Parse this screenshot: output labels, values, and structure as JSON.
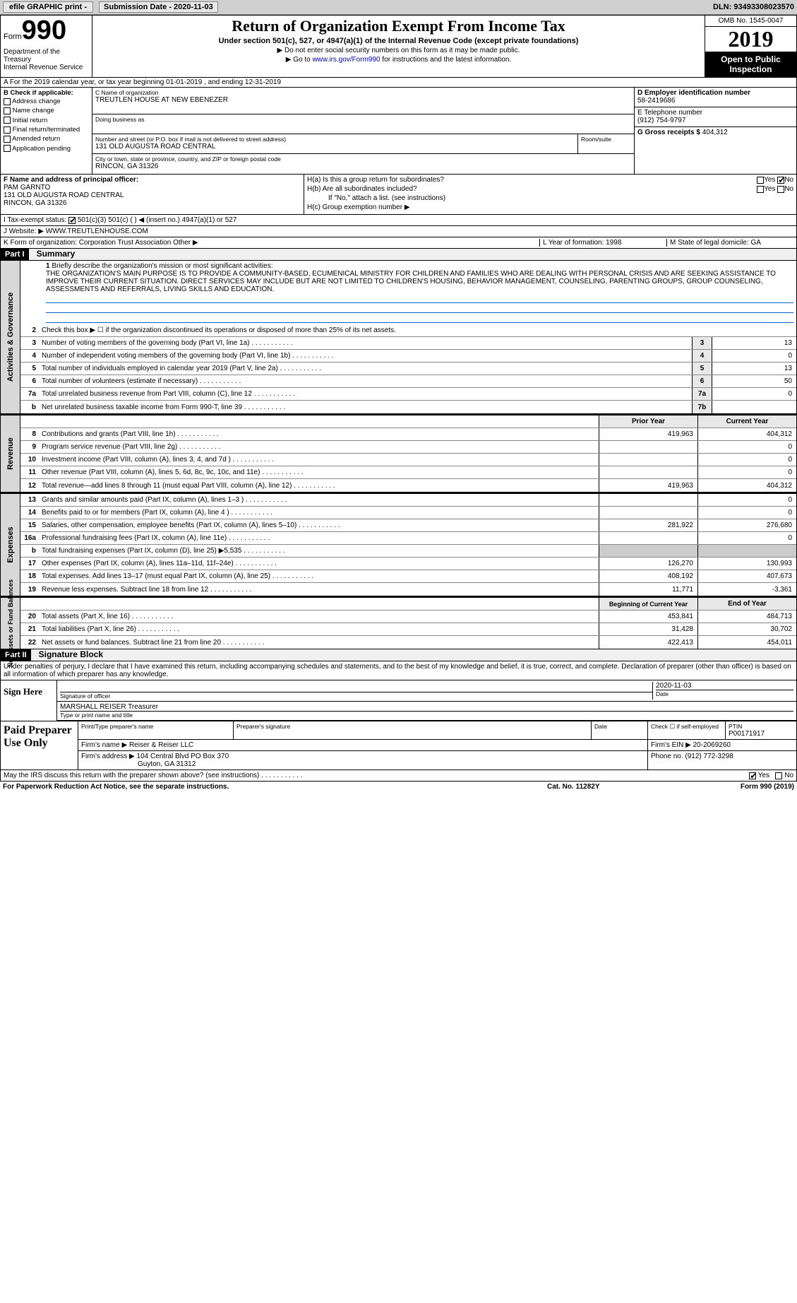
{
  "topbar": {
    "efile": "efile GRAPHIC print -",
    "sub_date_label": "Submission Date - 2020-11-03",
    "dln": "DLN: 93493308023570"
  },
  "header": {
    "form_label": "Form",
    "form_no": "990",
    "dept": "Department of the Treasury\nInternal Revenue Service",
    "title": "Return of Organization Exempt From Income Tax",
    "subtitle": "Under section 501(c), 527, or 4947(a)(1) of the Internal Revenue Code (except private foundations)",
    "note1": "▶ Do not enter social security numbers on this form as it may be made public.",
    "note2_pre": "▶ Go to ",
    "note2_link": "www.irs.gov/Form990",
    "note2_post": " for instructions and the latest information.",
    "omb": "OMB No. 1545-0047",
    "year": "2019",
    "otp": "Open to Public Inspection"
  },
  "row_a": "A For the 2019 calendar year, or tax year beginning 01-01-2019    , and ending 12-31-2019",
  "col_b": {
    "hdr": "B Check if applicable:",
    "items": [
      "Address change",
      "Name change",
      "Initial return",
      "Final return/terminated",
      "Amended return",
      "Application pending"
    ]
  },
  "col_c": {
    "name_lbl": "C Name of organization",
    "name": "TREUTLEN HOUSE AT NEW EBENEZER",
    "dba_lbl": "Doing business as",
    "dba": "",
    "addr_lbl": "Number and street (or P.O. box if mail is not delivered to street address)",
    "addr": "131 OLD AUGUSTA ROAD CENTRAL",
    "room_lbl": "Room/suite",
    "city_lbl": "City or town, state or province, country, and ZIP or foreign postal code",
    "city": "RINCON, GA  31326"
  },
  "col_deg": {
    "d_lbl": "D Employer identification number",
    "d_val": "58-2419686",
    "e_lbl": "E Telephone number",
    "e_val": "(912) 754-9797",
    "g_lbl": "G Gross receipts $",
    "g_val": "404,312"
  },
  "col_f": {
    "lbl": "F Name and address of principal officer:",
    "name": "PAM GARNTO",
    "addr1": "131 OLD AUGUSTA ROAD CENTRAL",
    "addr2": "RINCON, GA  31326"
  },
  "col_h": {
    "ha": "H(a)  Is this a group return for subordinates?",
    "hb": "H(b)  Are all subordinates included?",
    "hb_note": "If \"No,\" attach a list. (see instructions)",
    "hc": "H(c)  Group exemption number ▶"
  },
  "row_i": "I   Tax-exempt status:",
  "row_i_opts": "501(c)(3)      501(c) (  ) ◀ (insert no.)      4947(a)(1) or      527",
  "row_j_lbl": "J   Website: ▶",
  "row_j_val": "WWW.TREUTLENHOUSE.COM",
  "row_k": "K Form of organization:      Corporation      Trust      Association      Other ▶",
  "row_l_lbl": "L Year of formation:",
  "row_l_val": "1998",
  "row_m_lbl": "M State of legal domicile:",
  "row_m_val": "GA",
  "part1": {
    "label": "Part I",
    "title": "Summary"
  },
  "mission": {
    "num": "1",
    "lbl": "Briefly describe the organization's mission or most significant activities:",
    "text": "THE ORGANIZATION'S MAIN PURPOSE IS TO PROVIDE A COMMUNITY-BASED, ECUMENICAL MINISTRY FOR CHILDREN AND FAMILIES WHO ARE DEALING WITH PERSONAL CRISIS AND ARE SEEKING ASSISTANCE TO IMPROVE THEIR CURRENT SITUATION. DIRECT SERVICES MAY INCLUDE BUT ARE NOT LIMITED TO CHILDREN'S HOUSING, BEHAVIOR MANAGEMENT, COUNSELING, PARENTING GROUPS, GROUP COUNSELING, ASSESSMENTS AND REFERRALS, LIVING SKILLS AND EDUCATION."
  },
  "gov_rows": [
    {
      "n": "2",
      "d": "Check this box ▶ ☐ if the organization discontinued its operations or disposed of more than 25% of its net assets."
    },
    {
      "n": "3",
      "d": "Number of voting members of the governing body (Part VI, line 1a)",
      "box": "3",
      "v": "13"
    },
    {
      "n": "4",
      "d": "Number of independent voting members of the governing body (Part VI, line 1b)",
      "box": "4",
      "v": "0"
    },
    {
      "n": "5",
      "d": "Total number of individuals employed in calendar year 2019 (Part V, line 2a)",
      "box": "5",
      "v": "13"
    },
    {
      "n": "6",
      "d": "Total number of volunteers (estimate if necessary)",
      "box": "6",
      "v": "50"
    },
    {
      "n": "7a",
      "d": "Total unrelated business revenue from Part VIII, column (C), line 12",
      "box": "7a",
      "v": "0"
    },
    {
      "n": "b",
      "d": "Net unrelated business taxable income from Form 990-T, line 39",
      "box": "7b",
      "v": ""
    }
  ],
  "rev_hdr": {
    "prior": "Prior Year",
    "curr": "Current Year"
  },
  "rev_rows": [
    {
      "n": "8",
      "d": "Contributions and grants (Part VIII, line 1h)",
      "p": "419,963",
      "c": "404,312"
    },
    {
      "n": "9",
      "d": "Program service revenue (Part VIII, line 2g)",
      "p": "",
      "c": "0"
    },
    {
      "n": "10",
      "d": "Investment income (Part VIII, column (A), lines 3, 4, and 7d )",
      "p": "",
      "c": "0"
    },
    {
      "n": "11",
      "d": "Other revenue (Part VIII, column (A), lines 5, 6d, 8c, 9c, 10c, and 11e)",
      "p": "",
      "c": "0"
    },
    {
      "n": "12",
      "d": "Total revenue—add lines 8 through 11 (must equal Part VIII, column (A), line 12)",
      "p": "419,963",
      "c": "404,312"
    }
  ],
  "exp_rows": [
    {
      "n": "13",
      "d": "Grants and similar amounts paid (Part IX, column (A), lines 1–3 )",
      "p": "",
      "c": "0"
    },
    {
      "n": "14",
      "d": "Benefits paid to or for members (Part IX, column (A), line 4 )",
      "p": "",
      "c": "0"
    },
    {
      "n": "15",
      "d": "Salaries, other compensation, employee benefits (Part IX, column (A), lines 5–10)",
      "p": "281,922",
      "c": "276,680"
    },
    {
      "n": "16a",
      "d": "Professional fundraising fees (Part IX, column (A), line 11e)",
      "p": "",
      "c": "0"
    },
    {
      "n": "b",
      "d": "Total fundraising expenses (Part IX, column (D), line 25) ▶5,535",
      "p": "—",
      "c": "—"
    },
    {
      "n": "17",
      "d": "Other expenses (Part IX, column (A), lines 11a–11d, 11f–24e)",
      "p": "126,270",
      "c": "130,993"
    },
    {
      "n": "18",
      "d": "Total expenses. Add lines 13–17 (must equal Part IX, column (A), line 25)",
      "p": "408,192",
      "c": "407,673"
    },
    {
      "n": "19",
      "d": "Revenue less expenses. Subtract line 18 from line 12",
      "p": "11,771",
      "c": "-3,361"
    }
  ],
  "net_hdr": {
    "prior": "Beginning of Current Year",
    "curr": "End of Year"
  },
  "net_rows": [
    {
      "n": "20",
      "d": "Total assets (Part X, line 16)",
      "p": "453,841",
      "c": "484,713"
    },
    {
      "n": "21",
      "d": "Total liabilities (Part X, line 26)",
      "p": "31,428",
      "c": "30,702"
    },
    {
      "n": "22",
      "d": "Net assets or fund balances. Subtract line 21 from line 20",
      "p": "422,413",
      "c": "454,011"
    }
  ],
  "side_tabs": {
    "gov": "Activities & Governance",
    "rev": "Revenue",
    "exp": "Expenses",
    "net": "Net Assets or Fund Balances"
  },
  "part2": {
    "label": "Part II",
    "title": "Signature Block"
  },
  "sig": {
    "decl": "Under penalties of perjury, I declare that I have examined this return, including accompanying schedules and statements, and to the best of my knowledge and belief, it is true, correct, and complete. Declaration of preparer (other than officer) is based on all information of which preparer has any knowledge.",
    "sign_here": "Sign Here",
    "sig_lbl": "Signature of officer",
    "date": "2020-11-03",
    "date_lbl": "Date",
    "name": "MARSHALL REISER Treasurer",
    "name_lbl": "Type or print name and title"
  },
  "paid": {
    "label": "Paid Preparer Use Only",
    "print_lbl": "Print/Type preparer's name",
    "psig_lbl": "Preparer's signature",
    "pdate_lbl": "Date",
    "check_lbl": "Check ☐ if self-employed",
    "ptin_lbl": "PTIN",
    "ptin": "P00171917",
    "firm_name_lbl": "Firm's name   ▶",
    "firm_name": "Reiser & Reiser LLC",
    "firm_ein_lbl": "Firm's EIN ▶",
    "firm_ein": "20-2069260",
    "firm_addr_lbl": "Firm's address ▶",
    "firm_addr": "104 Central Blvd PO Box 370",
    "firm_city": "Guyton, GA  31312",
    "phone_lbl": "Phone no.",
    "phone": "(912) 772-3298"
  },
  "discuss": "May the IRS discuss this return with the preparer shown above? (see instructions)",
  "foot": {
    "l": "For Paperwork Reduction Act Notice, see the separate instructions.",
    "m": "Cat. No. 11282Y",
    "r": "Form 990 (2019)"
  }
}
